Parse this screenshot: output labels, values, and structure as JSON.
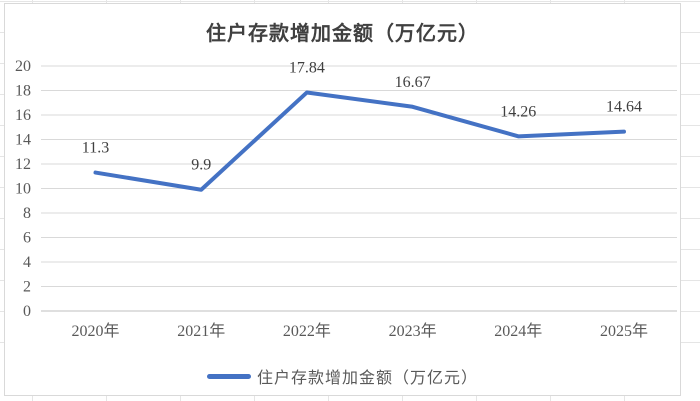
{
  "colors": {
    "line": "#4472C4",
    "gridline": "#d9d9d9",
    "axis_line": "#bfbfbf",
    "tick_label": "#595959",
    "data_label": "#3f3f3f",
    "title": "#404040",
    "chart_border": "#d9d9d9",
    "sheet_grid": "#e5e5e5"
  },
  "chart_data": {
    "type": "line",
    "title": "住户存款增加金额（万亿元）",
    "xlabel": "",
    "ylabel": "",
    "categories": [
      "2020年",
      "2021年",
      "2022年",
      "2023年",
      "2024年",
      "2025年"
    ],
    "series": [
      {
        "name": "住户存款增加金额（万亿元）",
        "values": [
          11.3,
          9.9,
          17.84,
          16.67,
          14.26,
          14.64
        ],
        "point_labels": [
          "11.3",
          "9.9",
          "17.84",
          "16.67",
          "14.26",
          "14.64"
        ]
      }
    ],
    "ylim": [
      0,
      20
    ],
    "ytick_step": 2,
    "ytick_labels": [
      "0",
      "2",
      "4",
      "6",
      "8",
      "10",
      "12",
      "14",
      "16",
      "18",
      "20"
    ],
    "grid": true,
    "markers": false,
    "legend_position": "bottom"
  },
  "legend": {
    "label": "住户存款增加金额（万亿元）"
  }
}
